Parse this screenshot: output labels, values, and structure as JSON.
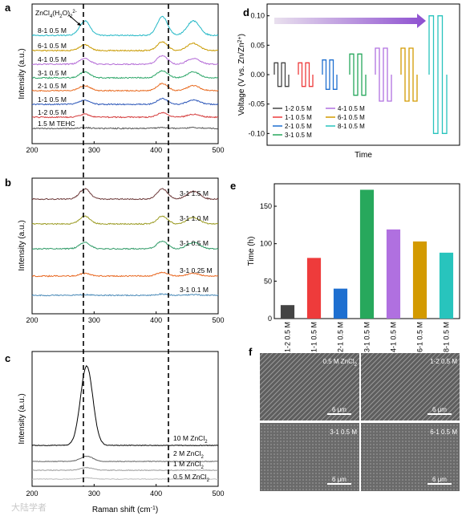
{
  "panel_letters": [
    "a",
    "b",
    "c",
    "d",
    "e",
    "f"
  ],
  "colors": {
    "a_series": [
      "#24b8c6",
      "#c99a00",
      "#b36ad6",
      "#2aa566",
      "#e86a1f",
      "#2a55b8",
      "#d43a3a",
      "#555555"
    ],
    "b_series": [
      "#6d3a3a",
      "#9a9a20",
      "#2e9a66",
      "#e8661e",
      "#4a8ab8"
    ],
    "c_series": [
      "#000000",
      "#666666",
      "#999999",
      "#bbbbbb"
    ],
    "e_bars": [
      "#444444",
      "#ee3b3b",
      "#1e6fd0",
      "#27a85c",
      "#b070e0",
      "#d39a00",
      "#28c4bd"
    ],
    "d_arrow_from": "#e9e0ee",
    "d_arrow_to": "#8d4fd0"
  },
  "chart_data": [
    {
      "panel": "a",
      "type": "line",
      "xlabel": "",
      "ylabel": "Intensity (a.u.)",
      "xlim": [
        200,
        500
      ],
      "xticks": [
        "200",
        "300",
        "400",
        "500"
      ],
      "annotation": "ZnCl4(H2O)2 2-",
      "series": [
        {
          "name": "8-1 0.5 M",
          "peaks": [
            [
              285,
              1.0
            ],
            [
              410,
              1.3
            ],
            [
              460,
              1.0
            ]
          ]
        },
        {
          "name": "6-1 0.5 M",
          "peaks": [
            [
              285,
              0.4
            ],
            [
              410,
              0.6
            ],
            [
              460,
              0.5
            ]
          ]
        },
        {
          "name": "4-1 0.5 M",
          "peaks": [
            [
              285,
              0.4
            ],
            [
              410,
              0.6
            ],
            [
              460,
              0.4
            ]
          ]
        },
        {
          "name": "3-1 0.5 M",
          "peaks": [
            [
              285,
              0.4
            ],
            [
              410,
              0.5
            ],
            [
              460,
              0.4
            ]
          ]
        },
        {
          "name": "2-1 0.5 M",
          "peaks": [
            [
              285,
              0.35
            ],
            [
              410,
              0.5
            ],
            [
              460,
              0.35
            ]
          ]
        },
        {
          "name": "1-1 0.5 M",
          "peaks": [
            [
              285,
              0.3
            ],
            [
              410,
              0.4
            ],
            [
              460,
              0.3
            ]
          ]
        },
        {
          "name": "1-2 0.5 M",
          "peaks": [
            [
              285,
              0.2
            ],
            [
              410,
              0.3
            ],
            [
              460,
              0.2
            ]
          ]
        },
        {
          "name": "1.5 M TEHC",
          "peaks": [
            [
              285,
              0.05
            ],
            [
              410,
              0.05
            ],
            [
              460,
              0.05
            ]
          ]
        }
      ]
    },
    {
      "panel": "b",
      "type": "line",
      "xlabel": "",
      "ylabel": "Intensity (a.u.)",
      "xlim": [
        200,
        500
      ],
      "xticks": [
        "200",
        "300",
        "400",
        "500"
      ],
      "series": [
        {
          "name": "3-1 1.5 M",
          "peaks": [
            [
              285,
              0.8
            ],
            [
              410,
              0.8
            ],
            [
              460,
              0.6
            ]
          ]
        },
        {
          "name": "3-1 1.0 M",
          "peaks": [
            [
              285,
              0.6
            ],
            [
              410,
              0.6
            ],
            [
              460,
              0.5
            ]
          ]
        },
        {
          "name": "3-1 0.5 M",
          "peaks": [
            [
              285,
              0.5
            ],
            [
              410,
              0.6
            ],
            [
              460,
              0.5
            ]
          ]
        },
        {
          "name": "3-1 0.25 M",
          "peaks": [
            [
              285,
              0.2
            ],
            [
              410,
              0.3
            ],
            [
              460,
              0.2
            ]
          ]
        },
        {
          "name": "3-1 0.1 M",
          "peaks": [
            [
              285,
              0.05
            ],
            [
              410,
              0.1
            ],
            [
              460,
              0.05
            ]
          ]
        }
      ]
    },
    {
      "panel": "c",
      "type": "line",
      "xlabel": "Raman shift (cm-1)",
      "ylabel": "Intensity (a.u.)",
      "xlim": [
        200,
        500
      ],
      "xticks": [
        "200",
        "300",
        "400",
        "500"
      ],
      "series": [
        {
          "name": "10 M ZnCl2",
          "peaks": [
            [
              288,
              9.0
            ]
          ]
        },
        {
          "name": "2 M ZnCl2",
          "peaks": [
            [
              288,
              0.6
            ]
          ]
        },
        {
          "name": "1 M ZnCl2",
          "peaks": [
            [
              288,
              0.3
            ]
          ]
        },
        {
          "name": "0.5 M ZnCl2",
          "peaks": [
            [
              288,
              0.15
            ]
          ]
        }
      ]
    },
    {
      "panel": "d",
      "type": "line",
      "xlabel": "Time",
      "ylabel": "Voltage (V vs. Zn/Zn2+)",
      "ylim": [
        -0.12,
        0.12
      ],
      "yticks": [
        "-0.10",
        "-0.05",
        "0.00",
        "0.05",
        "0.10"
      ],
      "series": [
        {
          "name": "1-2 0.5 M",
          "amplitude": 0.02
        },
        {
          "name": "1-1 0.5 M",
          "amplitude": 0.02
        },
        {
          "name": "2-1 0.5 M",
          "amplitude": 0.025
        },
        {
          "name": "3-1 0.5 M",
          "amplitude": 0.035
        },
        {
          "name": "4-1 0.5 M",
          "amplitude": 0.045
        },
        {
          "name": "6-1 0.5 M",
          "amplitude": 0.045
        },
        {
          "name": "8-1 0.5 M",
          "amplitude": 0.1
        }
      ]
    },
    {
      "panel": "e",
      "type": "bar",
      "xlabel": "",
      "ylabel": "Time (h)",
      "ylim": [
        0,
        180
      ],
      "yticks": [
        "0",
        "50",
        "100",
        "150"
      ],
      "categories": [
        "1-2 0.5 M",
        "1-1 0.5 M",
        "2-1 0.5 M",
        "3-1 0.5 M",
        "4-1 0.5 M",
        "6-1 0.5 M",
        "8-1 0.5 M"
      ],
      "values": [
        18,
        81,
        40,
        172,
        119,
        103,
        88
      ]
    }
  ],
  "sem": {
    "labels": [
      "0.5 M ZnCl2",
      "1-2 0.5 M",
      "3-1 0.5 M",
      "6-1 0.5 M"
    ],
    "scalebar": "6 μm"
  },
  "watermark": "大陆学者"
}
